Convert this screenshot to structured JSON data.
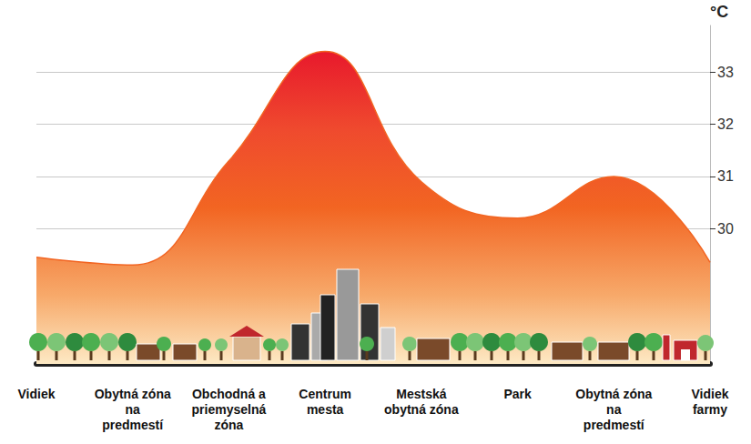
{
  "chart_data": {
    "type": "area",
    "y_label": "°C",
    "categories": [
      "Vidiek",
      "Obytná zóna na predmestí",
      "Obchodná a priemyselná zóna",
      "Centrum mesta",
      "Mestská obytná zóna",
      "Park",
      "Obytná zóna na predmestí",
      "Vidiek farmy"
    ],
    "values": [
      29.45,
      29.3,
      31.3,
      33.4,
      30.9,
      30.2,
      31.0,
      29.35
    ],
    "color": "#f26522",
    "ylim": [
      27.4,
      33.9
    ],
    "yticks": [
      30,
      31,
      32,
      33
    ],
    "grid": true
  }
}
